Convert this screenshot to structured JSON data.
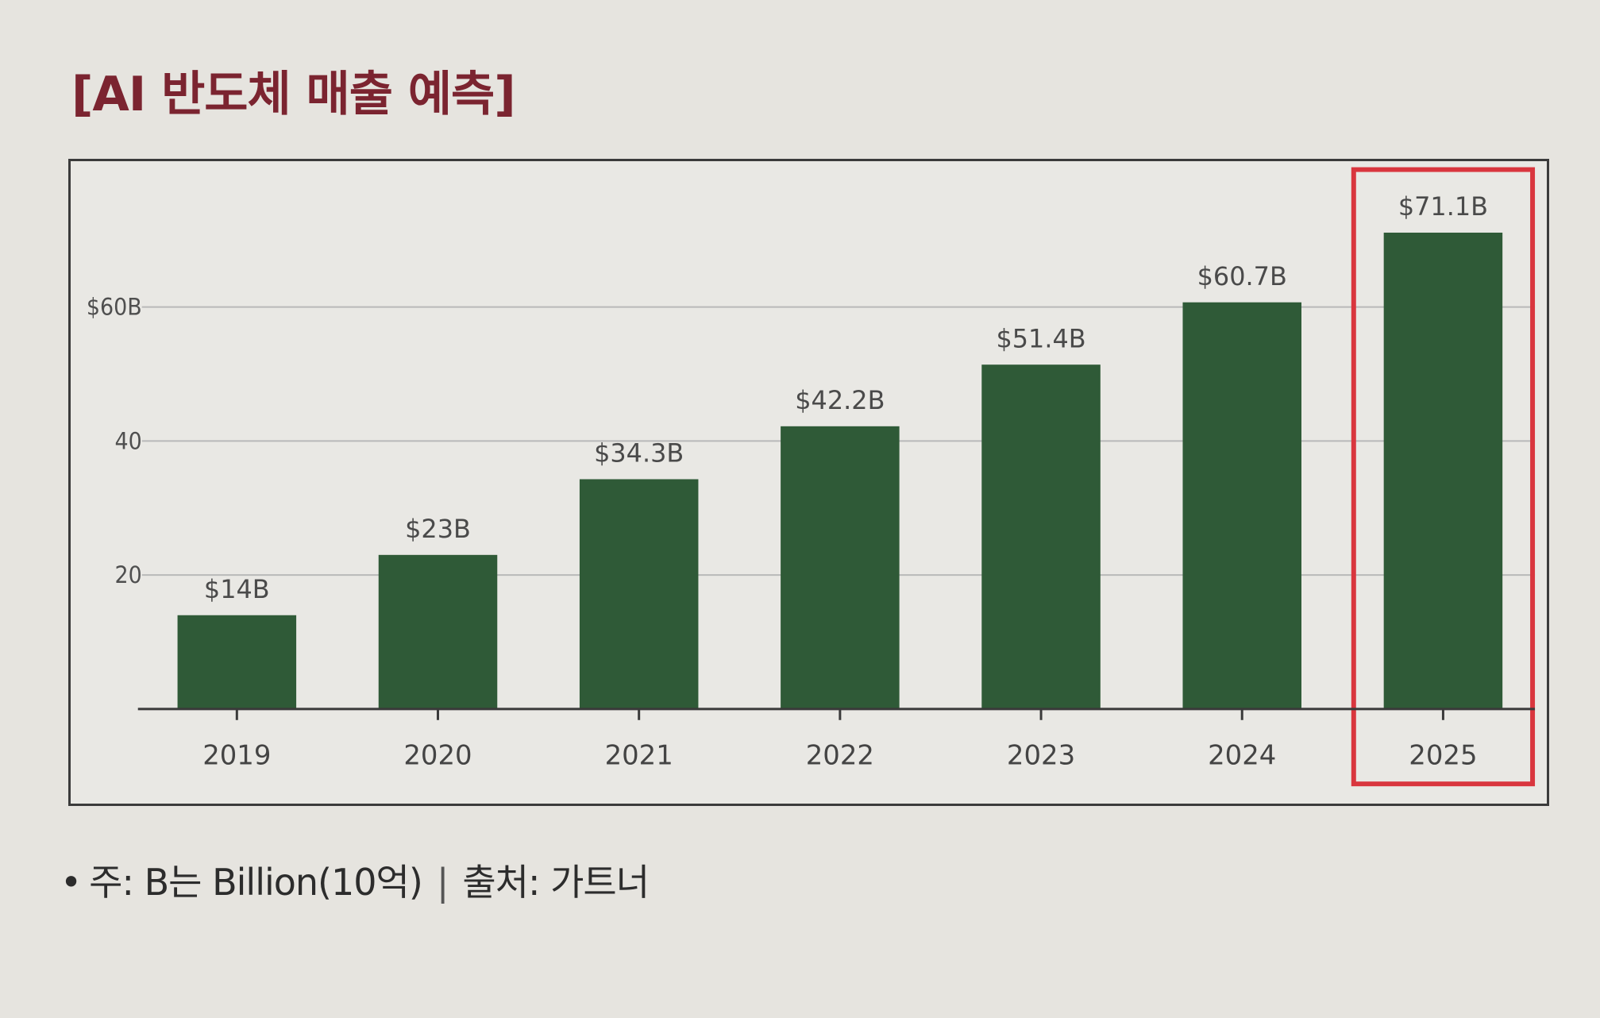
{
  "title": "[AI 반도체 매출 예측]",
  "footnote": {
    "bullet": "•",
    "note": "주: B는 Billion(10억)",
    "separator": "|",
    "source": "출처: 가트너"
  },
  "colors": {
    "bar": "#2f5a37",
    "highlight_box": "#d9363e",
    "gridline": "#b9b9b9",
    "axis": "#3a3a3a"
  },
  "chart_data": {
    "type": "bar",
    "title": "[AI 반도체 매출 예측]",
    "xlabel": "",
    "ylabel": "",
    "categories": [
      "2019",
      "2020",
      "2021",
      "2022",
      "2023",
      "2024",
      "2025"
    ],
    "values": [
      14,
      23,
      34.3,
      42.2,
      51.4,
      60.7,
      71.1
    ],
    "data_labels": [
      "$14B",
      "$23B",
      "$34.3B",
      "$42.2B",
      "$51.4B",
      "$60.7B",
      "$71.1B"
    ],
    "yticks": [
      20,
      40,
      60
    ],
    "ytick_labels": [
      "20",
      "40",
      "$60B"
    ],
    "ylim": [
      0,
      80
    ],
    "grid": true,
    "highlight_category": "2025"
  }
}
